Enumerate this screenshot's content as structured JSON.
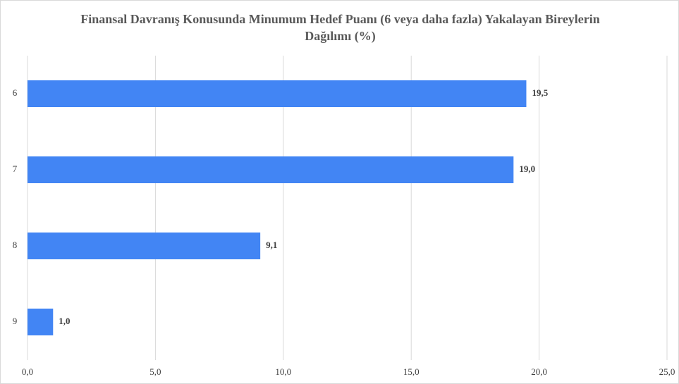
{
  "chart_data": {
    "type": "barh",
    "title": "Finansal Davranış Konusunda Minumum Hedef Puanı (6 veya daha fazla) Yakalayan Bireylerin Dağılımı (%)",
    "categories": [
      "6",
      "7",
      "8",
      "9"
    ],
    "values": [
      19.5,
      19.0,
      9.1,
      1.0
    ],
    "value_labels": [
      "19,5",
      "19,0",
      "9,1",
      "1,0"
    ],
    "color": "#4285f4",
    "xlim": [
      0,
      25
    ],
    "xticks": [
      {
        "value": 0,
        "label": "0,0"
      },
      {
        "value": 5,
        "label": "5,0"
      },
      {
        "value": 10,
        "label": "10,0"
      },
      {
        "value": 15,
        "label": "15,0"
      },
      {
        "value": 20,
        "label": "20,0"
      },
      {
        "value": 25,
        "label": "25,0"
      }
    ],
    "grid": true
  }
}
